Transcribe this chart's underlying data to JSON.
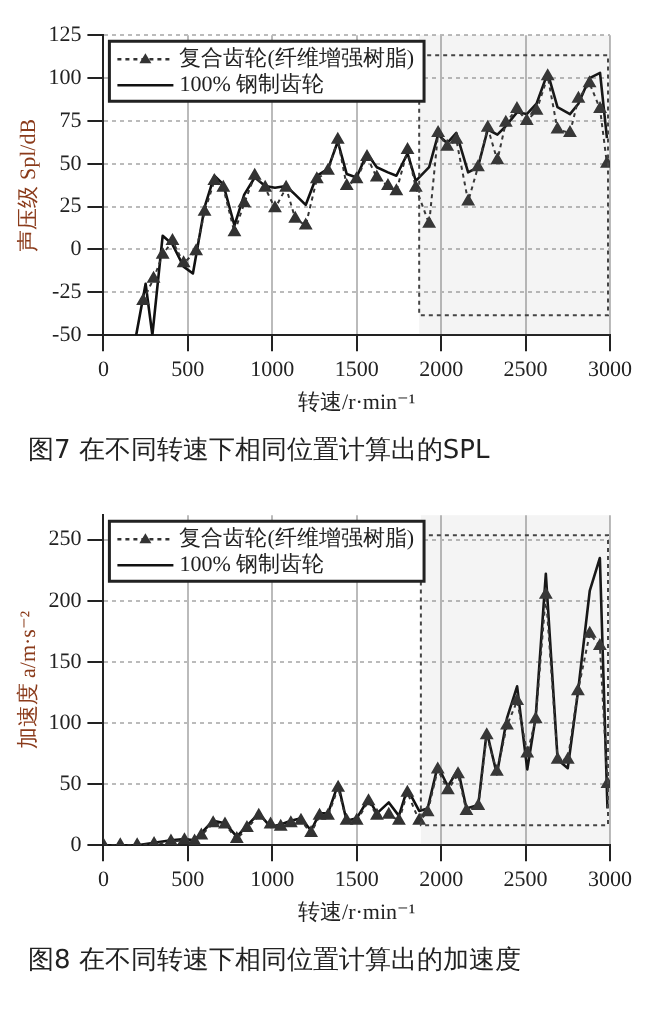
{
  "chart_data": [
    {
      "type": "line",
      "xlabel": "转速/r·min⁻¹",
      "ylabel": "声压级 Spl/dB",
      "annotations": [
        "图7 在不同转速下相同位置计算出的SPL"
      ],
      "xlim": [
        0,
        3000
      ],
      "xticks": [
        0,
        500,
        1000,
        1500,
        2000,
        2500,
        3000
      ],
      "ylim": [
        -50,
        125
      ],
      "yticks": [
        -50,
        -25,
        0,
        25,
        50,
        75,
        100,
        125
      ],
      "grid": true,
      "legend": "top left",
      "bands": [
        {
          "axis": "x",
          "from": 1870,
          "to": 3000
        }
      ],
      "series": [
        {
          "name": "复合齿轮(纤维增强树脂)",
          "color": "#333333",
          "marker": "triangle",
          "line_style": "dotted",
          "x": [
            235,
            297,
            351,
            409,
            475,
            549,
            599,
            657,
            710,
            776,
            834,
            896,
            958,
            1016,
            1082,
            1136,
            1198,
            1264,
            1330,
            1388,
            1441,
            1499,
            1561,
            1619,
            1685,
            1735,
            1801,
            1850,
            1929,
            1982,
            2036,
            2090,
            2160,
            2218,
            2276,
            2333,
            2383,
            2449,
            2507,
            2565,
            2631,
            2689,
            2763,
            2813,
            2879,
            2941,
            2982
          ],
          "values": [
            -30,
            -17,
            -3,
            5,
            -8,
            -1,
            22,
            40,
            36,
            10,
            27,
            43,
            36,
            24,
            36,
            18,
            14,
            41,
            46,
            64,
            37,
            41,
            54,
            42,
            37,
            34,
            58,
            36,
            15,
            68,
            60,
            64,
            28,
            48,
            71,
            52,
            74,
            82,
            75,
            81,
            101,
            70,
            68,
            88,
            97,
            82,
            50
          ]
        },
        {
          "name": "100% 钢制齿轮",
          "color": "#111111",
          "marker": "none",
          "line_style": "solid",
          "x": [
            194,
            250,
            290,
            351,
            409,
            475,
            530,
            600,
            657,
            710,
            776,
            834,
            896,
            958,
            1016,
            1082,
            1136,
            1198,
            1264,
            1330,
            1388,
            1441,
            1499,
            1561,
            1619,
            1685,
            1735,
            1801,
            1850,
            1929,
            1982,
            2036,
            2090,
            2160,
            2218,
            2276,
            2333,
            2383,
            2449,
            2507,
            2565,
            2631,
            2689,
            2763,
            2813,
            2879,
            2941,
            2982
          ],
          "values": [
            -50,
            -20,
            -50,
            8,
            3,
            -10,
            -14,
            25,
            43,
            38,
            14,
            32,
            42,
            37,
            36,
            37,
            32,
            26,
            43,
            47,
            63,
            44,
            42,
            56,
            48,
            45,
            43,
            56,
            40,
            48,
            67,
            62,
            68,
            45,
            48,
            70,
            67,
            72,
            80,
            79,
            85,
            103,
            83,
            79,
            85,
            100,
            103,
            65
          ]
        }
      ]
    },
    {
      "type": "line",
      "xlabel": "转速/r·min⁻¹",
      "ylabel": "加速度 a/m·s⁻²",
      "annotations": [
        "图8 在不同转速下相同位置计算出的加速度"
      ],
      "xlim": [
        0,
        3000
      ],
      "xticks": [
        0,
        500,
        1000,
        1500,
        2000,
        2500,
        3000
      ],
      "ylim": [
        0,
        270
      ],
      "yticks": [
        0,
        50,
        100,
        150,
        200,
        250
      ],
      "grid": true,
      "legend": "top left",
      "bands": [
        {
          "axis": "x",
          "from": 1880,
          "to": 3000
        }
      ],
      "series": [
        {
          "name": "复合齿轮(纤维增强树脂)",
          "color": "#333333",
          "marker": "triangle",
          "line_style": "dotted",
          "x": [
            0,
            100,
            200,
            300,
            400,
            480,
            540,
            580,
            650,
            720,
            790,
            850,
            920,
            990,
            1050,
            1110,
            1170,
            1230,
            1280,
            1330,
            1390,
            1440,
            1500,
            1570,
            1620,
            1690,
            1750,
            1800,
            1870,
            1920,
            1980,
            2040,
            2100,
            2150,
            2220,
            2270,
            2330,
            2390,
            2450,
            2510,
            2560,
            2620,
            2690,
            2750,
            2810,
            2880,
            2940,
            2985
          ],
          "values": [
            0,
            0,
            0,
            1,
            3,
            4,
            3,
            8,
            18,
            17,
            5,
            14,
            24,
            17,
            15,
            18,
            20,
            10,
            24,
            24,
            47,
            20,
            20,
            36,
            24,
            25,
            20,
            43,
            20,
            27,
            62,
            45,
            58,
            28,
            32,
            90,
            60,
            98,
            118,
            75,
            103,
            205,
            70,
            70,
            126,
            173,
            163,
            50
          ]
        },
        {
          "name": "100% 钢制齿轮",
          "color": "#111111",
          "marker": "none",
          "line_style": "solid",
          "x": [
            0,
            100,
            200,
            300,
            400,
            480,
            540,
            580,
            650,
            720,
            790,
            850,
            920,
            990,
            1050,
            1110,
            1170,
            1230,
            1280,
            1330,
            1390,
            1440,
            1500,
            1570,
            1620,
            1690,
            1750,
            1800,
            1870,
            1920,
            1980,
            2040,
            2100,
            2150,
            2220,
            2270,
            2330,
            2390,
            2450,
            2510,
            2560,
            2620,
            2690,
            2750,
            2810,
            2880,
            2940,
            2985
          ],
          "values": [
            0,
            0,
            0,
            2,
            4,
            5,
            4,
            10,
            20,
            18,
            7,
            16,
            26,
            15,
            17,
            20,
            22,
            12,
            26,
            26,
            50,
            20,
            22,
            38,
            26,
            35,
            24,
            46,
            28,
            30,
            65,
            48,
            62,
            30,
            33,
            93,
            58,
            104,
            130,
            62,
            105,
            222,
            70,
            63,
            125,
            208,
            235,
            30
          ]
        }
      ]
    }
  ]
}
